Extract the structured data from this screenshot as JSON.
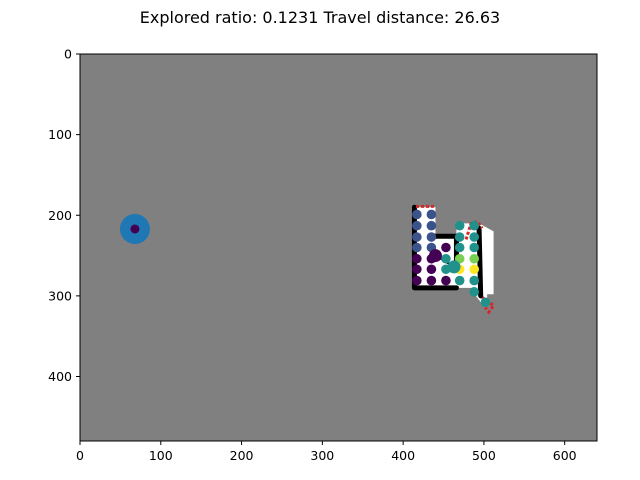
{
  "title": "Explored ratio: 0.1231  Travel distance: 26.63",
  "chart_data": {
    "type": "scatter",
    "title": "Explored ratio: 0.1231  Travel distance: 26.63",
    "xlabel": "",
    "ylabel": "",
    "xlim": [
      0,
      640
    ],
    "ylim": [
      480,
      0
    ],
    "y_inverted": true,
    "xticks": [
      0,
      100,
      200,
      300,
      400,
      500,
      600
    ],
    "yticks": [
      0,
      100,
      200,
      300,
      400
    ],
    "grid": false,
    "background_color": "#808080",
    "free_space_color": "#ffffff",
    "wall_color": "#000000",
    "frontier_color": "#d62728",
    "explored_region": {
      "outline": [
        [
          414,
          190
        ],
        [
          440,
          190
        ],
        [
          440,
          226
        ],
        [
          466,
          226
        ],
        [
          466,
          210
        ],
        [
          494,
          210
        ],
        [
          512,
          220
        ],
        [
          512,
          298
        ],
        [
          504,
          298
        ],
        [
          504,
          318
        ],
        [
          490,
          300
        ],
        [
          490,
          290
        ],
        [
          414,
          290
        ]
      ],
      "walls": [
        [
          [
            414,
            190
          ],
          [
            414,
            290
          ],
          [
            466,
            290
          ]
        ],
        [
          [
            440,
            226
          ],
          [
            466,
            226
          ]
        ],
        [
          [
            466,
            226
          ],
          [
            466,
            260
          ]
        ],
        [
          [
            494,
            216
          ],
          [
            496,
            300
          ]
        ]
      ],
      "frontiers": [
        [
          [
            416,
            189
          ],
          [
            438,
            189
          ]
        ],
        [
          [
            478,
            230
          ],
          [
            484,
            210
          ],
          [
            492,
            208
          ],
          [
            498,
            216
          ]
        ],
        [
          [
            498,
            302
          ],
          [
            512,
            312
          ],
          [
            506,
            320
          ],
          [
            500,
            312
          ]
        ]
      ]
    },
    "agent": {
      "x": 68,
      "y": 217,
      "outer_color": "#1f77b4",
      "inner_color": "#440154"
    },
    "current_position": {
      "x": 440,
      "y": 250
    },
    "candidates": [
      {
        "x": 417,
        "y": 199,
        "color": "#3b528b"
      },
      {
        "x": 435,
        "y": 199,
        "color": "#3b528b"
      },
      {
        "x": 417,
        "y": 213,
        "color": "#3b528b"
      },
      {
        "x": 435,
        "y": 213,
        "color": "#3b528b"
      },
      {
        "x": 417,
        "y": 227,
        "color": "#3b528b"
      },
      {
        "x": 435,
        "y": 227,
        "color": "#3b528b"
      },
      {
        "x": 417,
        "y": 240,
        "color": "#3b528b"
      },
      {
        "x": 435,
        "y": 240,
        "color": "#3b528b"
      },
      {
        "x": 453,
        "y": 240,
        "color": "#440154"
      },
      {
        "x": 470,
        "y": 240,
        "color": "#21918c"
      },
      {
        "x": 488,
        "y": 240,
        "color": "#21918c"
      },
      {
        "x": 417,
        "y": 254,
        "color": "#440154"
      },
      {
        "x": 435,
        "y": 254,
        "color": "#440154"
      },
      {
        "x": 453,
        "y": 254,
        "color": "#21918c"
      },
      {
        "x": 470,
        "y": 254,
        "color": "#7ad151"
      },
      {
        "x": 488,
        "y": 254,
        "color": "#7ad151"
      },
      {
        "x": 417,
        "y": 267,
        "color": "#440154"
      },
      {
        "x": 435,
        "y": 267,
        "color": "#440154"
      },
      {
        "x": 453,
        "y": 267,
        "color": "#21918c"
      },
      {
        "x": 470,
        "y": 267,
        "color": "#fde725"
      },
      {
        "x": 488,
        "y": 267,
        "color": "#fde725"
      },
      {
        "x": 417,
        "y": 281,
        "color": "#440154"
      },
      {
        "x": 435,
        "y": 281,
        "color": "#440154"
      },
      {
        "x": 453,
        "y": 281,
        "color": "#440154"
      },
      {
        "x": 470,
        "y": 281,
        "color": "#21918c"
      },
      {
        "x": 488,
        "y": 281,
        "color": "#21918c"
      },
      {
        "x": 470,
        "y": 227,
        "color": "#21918c"
      },
      {
        "x": 488,
        "y": 227,
        "color": "#21918c"
      },
      {
        "x": 470,
        "y": 213,
        "color": "#21918c"
      },
      {
        "x": 488,
        "y": 213,
        "color": "#21918c"
      },
      {
        "x": 488,
        "y": 295,
        "color": "#21918c"
      },
      {
        "x": 502,
        "y": 308,
        "color": "#21918c"
      }
    ],
    "highlight_candidate": {
      "x": 463,
      "y": 264,
      "color": "#21918c"
    }
  }
}
